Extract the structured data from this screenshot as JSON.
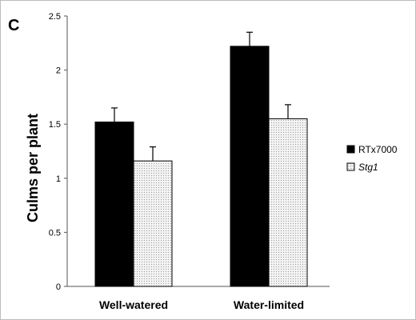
{
  "chart_data": {
    "type": "bar",
    "panel_label": "C",
    "categories": [
      "Well-watered",
      "Water-limited"
    ],
    "series": [
      {
        "name": "RTx7000",
        "italic": false,
        "color": "#000000",
        "values": [
          1.52,
          2.22
        ],
        "errors": [
          0.13,
          0.13
        ]
      },
      {
        "name": "Stg1",
        "italic": true,
        "color": "#e4e4e4",
        "values": [
          1.16,
          1.55
        ],
        "errors": [
          0.13,
          0.13
        ]
      }
    ],
    "ylabel": "Culms per plant",
    "xlabel": "",
    "ylim": [
      0,
      2.5
    ],
    "yticks": [
      "0",
      "0.5",
      "1",
      "1.5",
      "2",
      "2.5"
    ],
    "grid": false,
    "legend_position": "right"
  }
}
